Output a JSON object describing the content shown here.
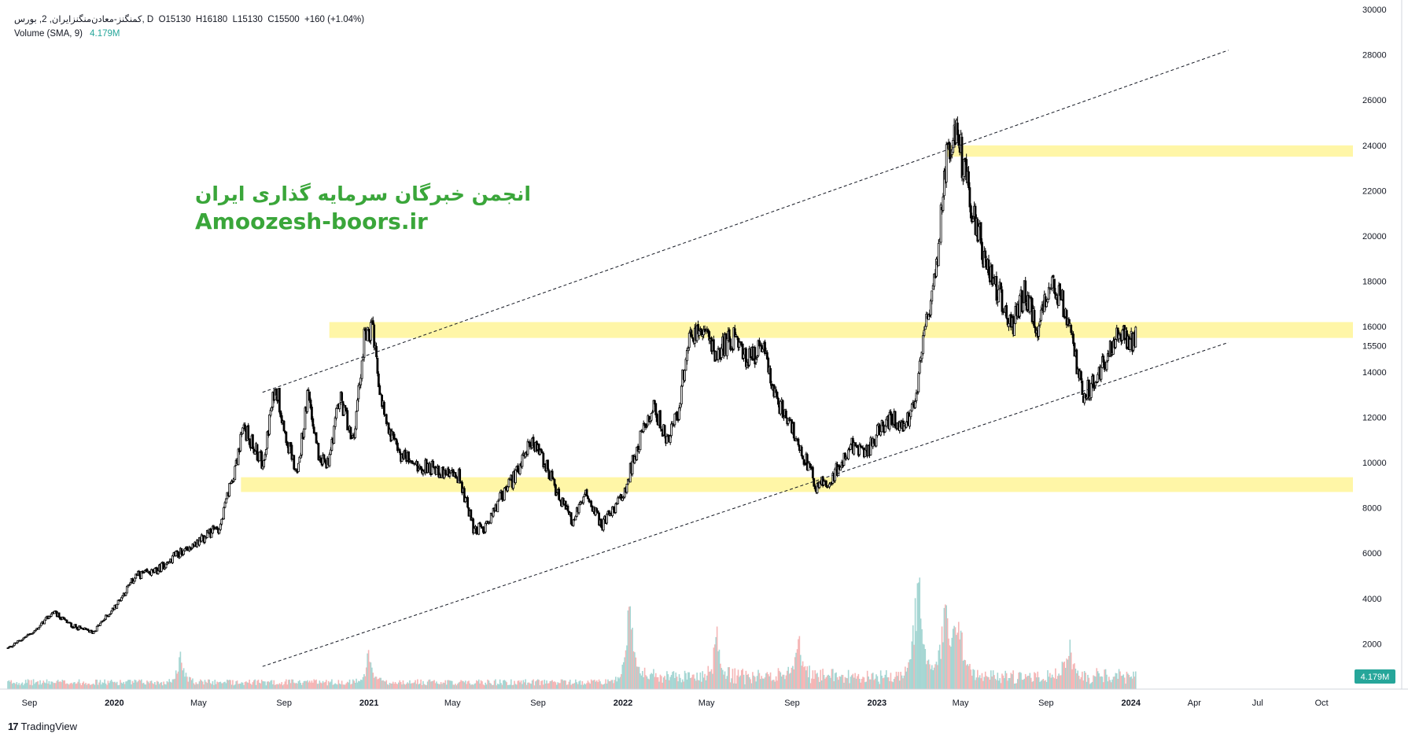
{
  "header": {
    "symbol_line": "کمنگنز-معادن‌منگنزایران, 2, بورس, D",
    "ohlc": {
      "open": "O15130",
      "high": "H16180",
      "low": "L15130",
      "close": "C15500",
      "change": "+160 (+1.04%)"
    },
    "volume_label": "Volume (SMA, 9)",
    "volume_value": "4.179M"
  },
  "watermark": {
    "persian": "انجمن خبرگان سرمایه گذاری ایران",
    "site": "Amoozesh-boors.ir"
  },
  "footer": {
    "brand": "TradingView"
  },
  "colors": {
    "zone": "#fff59d",
    "candle": "#000000",
    "volume_up": "#a5d6d3",
    "volume_down": "#f5b5b5",
    "badge": "#26a69a"
  },
  "chart_data": {
    "type": "candlestick",
    "y_axis": {
      "ticks": [
        2000,
        4000,
        6000,
        8000,
        10000,
        12000,
        14000,
        16000,
        18000,
        20000,
        22000,
        24000,
        26000,
        28000,
        30000
      ],
      "current_price": 15500,
      "current_volume_label": "4.179M"
    },
    "x_axis": {
      "labels": [
        "Sep",
        "2020",
        "May",
        "Sep",
        "2021",
        "May",
        "Sep",
        "2022",
        "May",
        "Sep",
        "2023",
        "May",
        "Sep",
        "2024",
        "Apr",
        "Jul",
        "Oct"
      ],
      "start": "2019-08-01",
      "end": "2024-11-15"
    },
    "price_path": [
      [
        "2019-08-01",
        1800
      ],
      [
        "2019-09-10",
        2600
      ],
      [
        "2019-10-05",
        3400
      ],
      [
        "2019-11-01",
        2800
      ],
      [
        "2019-12-01",
        2500
      ],
      [
        "2020-01-01",
        3600
      ],
      [
        "2020-02-01",
        5000
      ],
      [
        "2020-03-01",
        5200
      ],
      [
        "2020-04-01",
        6000
      ],
      [
        "2020-05-01",
        6500
      ],
      [
        "2020-06-01",
        7200
      ],
      [
        "2020-06-20",
        9500
      ],
      [
        "2020-07-05",
        11500
      ],
      [
        "2020-08-01",
        10000
      ],
      [
        "2020-08-20",
        13500
      ],
      [
        "2020-09-05",
        11000
      ],
      [
        "2020-09-20",
        9500
      ],
      [
        "2020-10-05",
        13000
      ],
      [
        "2020-10-20",
        10500
      ],
      [
        "2020-11-01",
        9800
      ],
      [
        "2020-11-20",
        12800
      ],
      [
        "2020-12-10",
        11000
      ],
      [
        "2020-12-25",
        15500
      ],
      [
        "2021-01-05",
        16000
      ],
      [
        "2021-01-20",
        12500
      ],
      [
        "2021-02-10",
        10500
      ],
      [
        "2021-03-10",
        9900
      ],
      [
        "2021-04-01",
        9800
      ],
      [
        "2021-04-20",
        9500
      ],
      [
        "2021-05-10",
        9400
      ],
      [
        "2021-06-01",
        7000
      ],
      [
        "2021-06-20",
        7200
      ],
      [
        "2021-07-10",
        8500
      ],
      [
        "2021-08-01",
        9500
      ],
      [
        "2021-08-20",
        11000
      ],
      [
        "2021-09-10",
        10000
      ],
      [
        "2021-10-01",
        8500
      ],
      [
        "2021-10-20",
        7400
      ],
      [
        "2021-11-10",
        8600
      ],
      [
        "2021-12-01",
        7200
      ],
      [
        "2021-12-20",
        8000
      ],
      [
        "2022-01-05",
        9000
      ],
      [
        "2022-01-25",
        11000
      ],
      [
        "2022-02-15",
        12500
      ],
      [
        "2022-03-05",
        11000
      ],
      [
        "2022-03-20",
        12000
      ],
      [
        "2022-04-05",
        15500
      ],
      [
        "2022-04-20",
        16000
      ],
      [
        "2022-05-15",
        14800
      ],
      [
        "2022-06-10",
        15500
      ],
      [
        "2022-07-01",
        14500
      ],
      [
        "2022-07-20",
        15200
      ],
      [
        "2022-08-05",
        13000
      ],
      [
        "2022-08-25",
        12000
      ],
      [
        "2022-09-15",
        10500
      ],
      [
        "2022-10-05",
        9000
      ],
      [
        "2022-10-25",
        9200
      ],
      [
        "2022-11-10",
        10000
      ],
      [
        "2022-11-25",
        10800
      ],
      [
        "2022-12-15",
        10300
      ],
      [
        "2023-01-05",
        11500
      ],
      [
        "2023-01-25",
        12000
      ],
      [
        "2023-02-10",
        11500
      ],
      [
        "2023-02-25",
        12800
      ],
      [
        "2023-03-10",
        15500
      ],
      [
        "2023-03-25",
        18000
      ],
      [
        "2023-04-10",
        23500
      ],
      [
        "2023-04-25",
        25000
      ],
      [
        "2023-05-05",
        23000
      ],
      [
        "2023-05-20",
        21000
      ],
      [
        "2023-06-05",
        19000
      ],
      [
        "2023-06-25",
        17500
      ],
      [
        "2023-07-15",
        16000
      ],
      [
        "2023-08-01",
        17500
      ],
      [
        "2023-08-20",
        16000
      ],
      [
        "2023-09-05",
        18000
      ],
      [
        "2023-09-25",
        17000
      ],
      [
        "2023-10-10",
        15000
      ],
      [
        "2023-10-25",
        13000
      ],
      [
        "2023-11-10",
        13500
      ],
      [
        "2023-11-25",
        14500
      ],
      [
        "2023-12-15",
        15800
      ],
      [
        "2023-12-30",
        15200
      ],
      [
        "2024-01-08",
        15500
      ]
    ],
    "zones": [
      {
        "start": "2023-04-10",
        "end": "2024-11-15",
        "low": 23500,
        "high": 24000
      },
      {
        "start": "2020-11-05",
        "end": "2024-11-15",
        "low": 15500,
        "high": 16200
      },
      {
        "start": "2020-07-01",
        "end": "2024-11-15",
        "low": 8700,
        "high": 9350
      }
    ],
    "trendlines": [
      {
        "from": [
          "2020-08-01",
          13100
        ],
        "to": [
          "2024-05-20",
          28200
        ]
      },
      {
        "from": [
          "2020-08-01",
          1000
        ],
        "to": [
          "2024-05-20",
          15300
        ]
      }
    ],
    "volume_spikes": [
      [
        "2022-01-10",
        3900000
      ],
      [
        "2022-05-15",
        2200000
      ],
      [
        "2022-09-10",
        2600000
      ],
      [
        "2023-03-01",
        6500000
      ],
      [
        "2023-04-10",
        5000000
      ],
      [
        "2023-04-28",
        4000000
      ],
      [
        "2023-10-05",
        1800000
      ],
      [
        "2021-01-01",
        1700000
      ],
      [
        "2020-04-05",
        1600000
      ]
    ]
  }
}
